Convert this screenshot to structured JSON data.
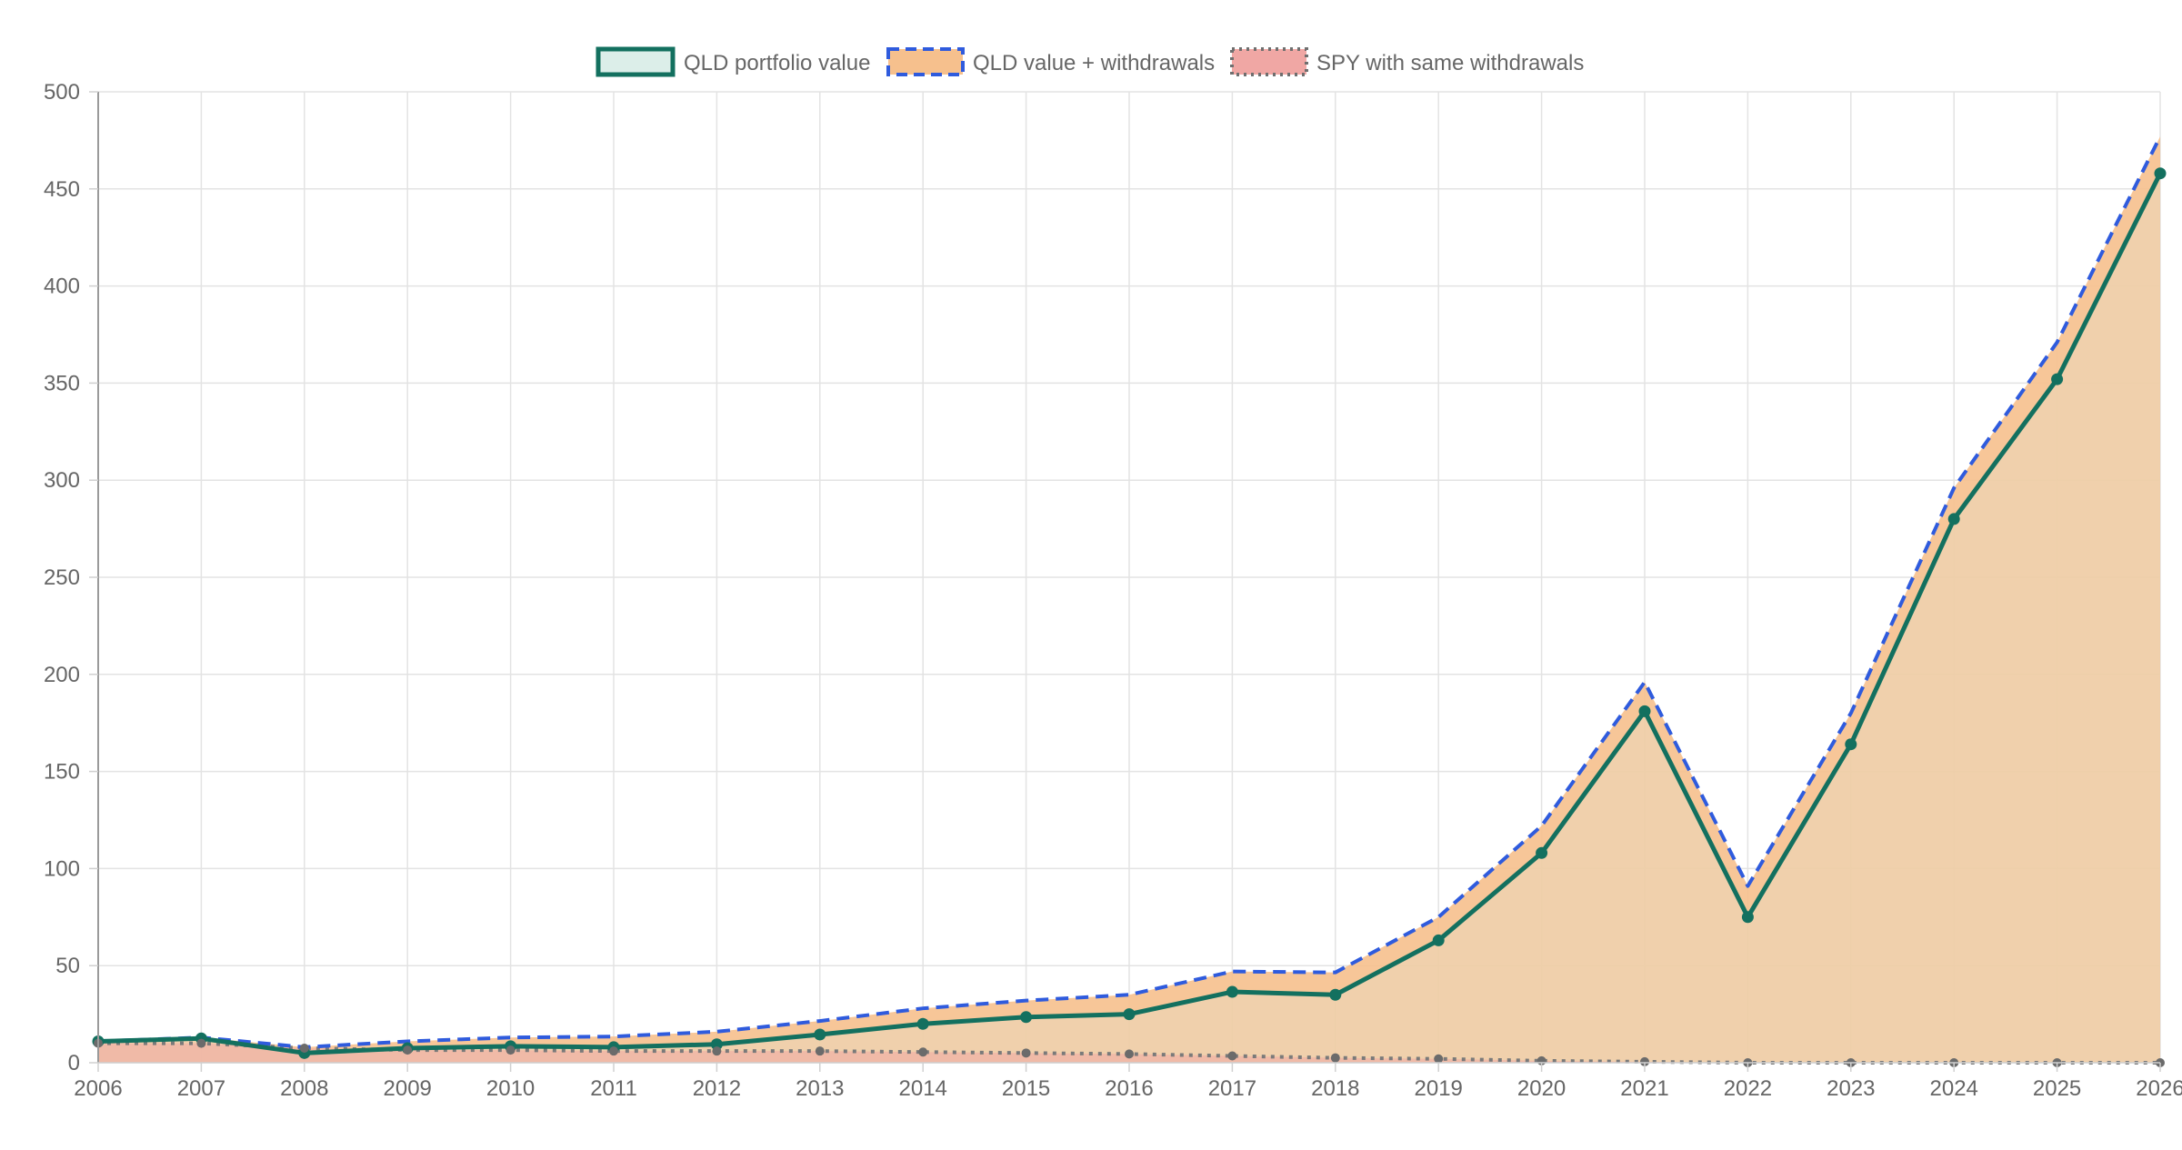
{
  "chart_data": {
    "type": "area",
    "title": "",
    "xlabel": "",
    "ylabel": "",
    "x": [
      "2006",
      "2007",
      "2008",
      "2009",
      "2010",
      "2011",
      "2012",
      "2013",
      "2014",
      "2015",
      "2016",
      "2017",
      "2018",
      "2019",
      "2020",
      "2021",
      "2022",
      "2023",
      "2024",
      "2025",
      "2026"
    ],
    "ylim": [
      0,
      500
    ],
    "yticks": [
      0,
      50,
      100,
      150,
      200,
      250,
      300,
      350,
      400,
      450,
      500
    ],
    "grid": true,
    "legend_position": "top-center",
    "series": [
      {
        "name": "QLD portfolio value",
        "line_color": "#13705f",
        "fill_color": "#dceee9",
        "line_style": "solid",
        "values": [
          11,
          12.5,
          5,
          7.5,
          8.5,
          8,
          9.5,
          14.5,
          20,
          23.5,
          25,
          36.5,
          35,
          63,
          108,
          181,
          75,
          164,
          280,
          352,
          458
        ]
      },
      {
        "name": "QLD value + withdrawals",
        "line_color": "#2f5bdd",
        "fill_color": "#f6c08d",
        "line_style": "dashed",
        "values": [
          11,
          13,
          8,
          11,
          13,
          13.5,
          16,
          21.5,
          28,
          32,
          35,
          47,
          46.5,
          75,
          122,
          196,
          91,
          180,
          296,
          371,
          477
        ]
      },
      {
        "name": "SPY with same withdrawals",
        "line_color": "#7a7a7a",
        "fill_color": "#f0a7a4",
        "line_style": "dotted",
        "values": [
          10,
          10,
          7.5,
          6.5,
          6.5,
          6,
          6,
          6,
          5.5,
          5,
          4.5,
          3.5,
          2.5,
          2,
          1,
          0.5,
          0,
          0,
          0,
          0,
          0
        ]
      }
    ]
  }
}
